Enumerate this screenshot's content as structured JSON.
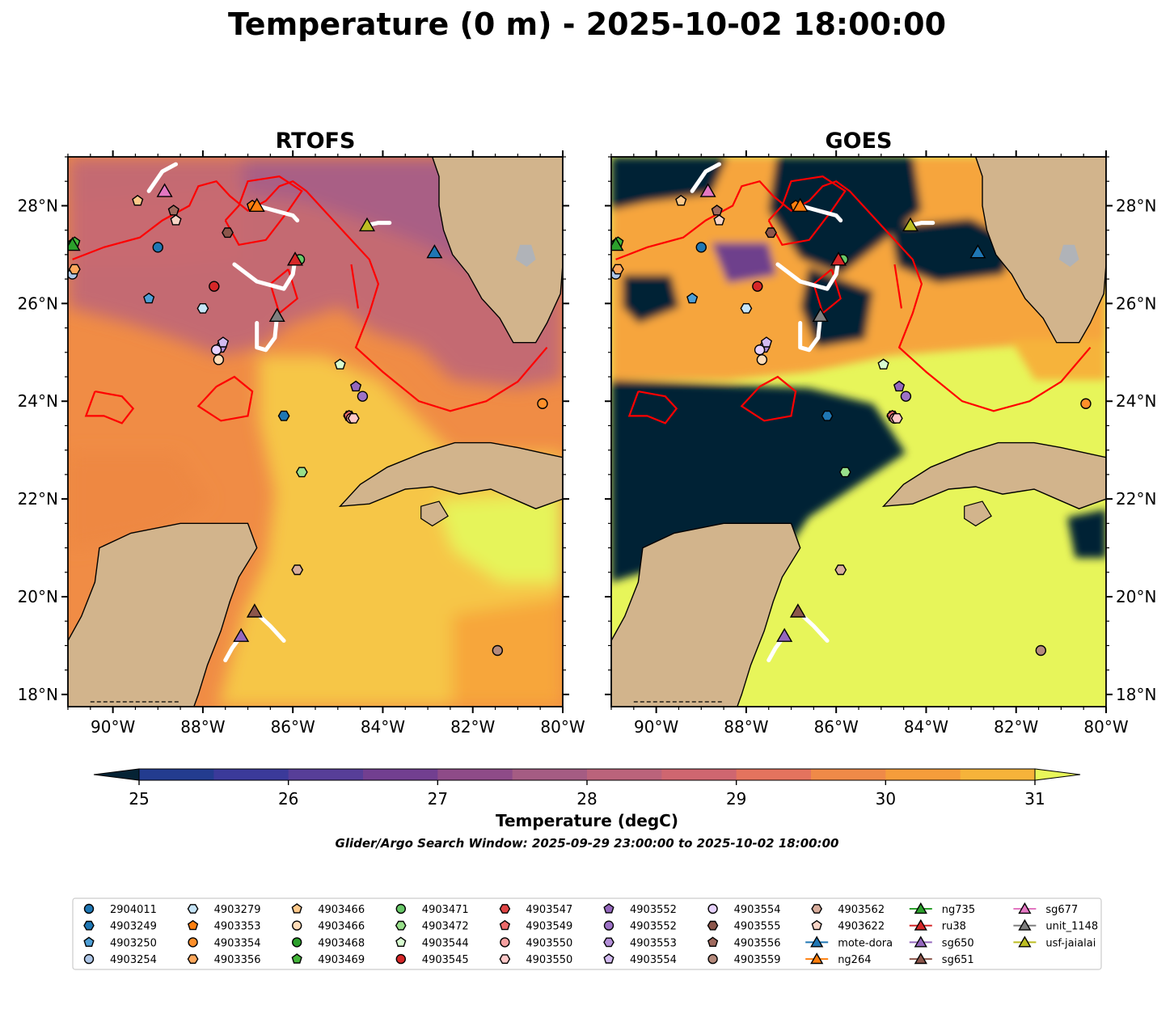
{
  "figure": {
    "title": "Temperature (0 m) - 2025-10-02 18:00:00",
    "search_window": "Glider/Argo Search Window: 2025-09-29 23:00:00 to 2025-10-02 18:00:00"
  },
  "chart_data": {
    "type": "heatmap",
    "x_range": [
      -91,
      -80
    ],
    "y_range": [
      17.75,
      29
    ],
    "x_ticks": [
      {
        "value": -90,
        "label": "90°W"
      },
      {
        "value": -88,
        "label": "88°W"
      },
      {
        "value": -86,
        "label": "86°W"
      },
      {
        "value": -84,
        "label": "84°W"
      },
      {
        "value": -82,
        "label": "82°W"
      },
      {
        "value": -80,
        "label": "80°W"
      }
    ],
    "y_ticks": [
      {
        "value": 18,
        "label": "18°N"
      },
      {
        "value": 20,
        "label": "20°N"
      },
      {
        "value": 22,
        "label": "22°N"
      },
      {
        "value": 24,
        "label": "24°N"
      },
      {
        "value": 26,
        "label": "26°N"
      },
      {
        "value": 28,
        "label": "28°N"
      }
    ],
    "panels": [
      {
        "title": "RTOFS",
        "tick_side": "left"
      },
      {
        "title": "GOES",
        "tick_side": "right"
      }
    ],
    "colorbar": {
      "label": "Temperature (degC)",
      "ticks": [
        25,
        26,
        27,
        28,
        29,
        30,
        31
      ],
      "range": [
        25,
        31
      ],
      "extend": "both",
      "colors": [
        "#052335",
        "#13306e",
        "#233c8f",
        "#3b3a9a",
        "#573e98",
        "#723f90",
        "#8e4b88",
        "#a55c83",
        "#bb637b",
        "#cf6670",
        "#e4735e",
        "#ef8a48",
        "#f59d3b",
        "#f6b33a",
        "#f5c847",
        "#e8f75a"
      ],
      "under_color": "#052335",
      "over_color": "#e8f75a"
    },
    "land_color": "#d2b48c",
    "observations": [
      {
        "name": "2904011",
        "lon": -89.0,
        "lat": 27.15,
        "marker": "circle",
        "color": "#1f77b4"
      },
      {
        "name": "4903249",
        "lon": -86.2,
        "lat": 23.7,
        "marker": "hexagon",
        "color": "#1f77b4"
      },
      {
        "name": "4903250",
        "lon": -89.2,
        "lat": 26.1,
        "marker": "pentagon",
        "color": "#4e9fd6"
      },
      {
        "name": "4903254",
        "lon": -90.9,
        "lat": 26.6,
        "marker": "circle",
        "color": "#aec7e8"
      },
      {
        "name": "4903279",
        "lon": -88.0,
        "lat": 25.9,
        "marker": "hexagon",
        "color": "#c6e5f8"
      },
      {
        "name": "4903353",
        "lon": -86.9,
        "lat": 28.0,
        "marker": "pentagon",
        "color": "#ff7f0e"
      },
      {
        "name": "4903354",
        "lon": -80.45,
        "lat": 23.95,
        "marker": "circle",
        "color": "#ff8f2a"
      },
      {
        "name": "4903356",
        "lon": -90.85,
        "lat": 26.7,
        "marker": "hexagon",
        "color": "#ffa85c"
      },
      {
        "name": "4903466",
        "lon": -89.45,
        "lat": 28.1,
        "marker": "pentagon",
        "color": "#ffc98a"
      },
      {
        "name": "4903466",
        "lon": -87.65,
        "lat": 24.85,
        "marker": "circle",
        "color": "#ffdcb8"
      },
      {
        "name": "4903468",
        "lon": -90.9,
        "lat": 27.2,
        "marker": "circle",
        "color": "#2ca02c"
      },
      {
        "name": "4903469",
        "lon": -90.85,
        "lat": 27.25,
        "marker": "pentagon",
        "color": "#44b63a"
      },
      {
        "name": "4903471",
        "lon": -85.85,
        "lat": 26.9,
        "marker": "circle",
        "color": "#68c868"
      },
      {
        "name": "4903472",
        "lon": -85.8,
        "lat": 22.55,
        "marker": "hexagon",
        "color": "#98df8a"
      },
      {
        "name": "4903544",
        "lon": -84.95,
        "lat": 24.75,
        "marker": "pentagon",
        "color": "#d8fcd0"
      },
      {
        "name": "4903545",
        "lon": -87.75,
        "lat": 26.35,
        "marker": "circle",
        "color": "#d62728"
      },
      {
        "name": "4903547",
        "lon": -84.75,
        "lat": 23.7,
        "marker": "hexagon",
        "color": "#e04545"
      },
      {
        "name": "4903549",
        "lon": -84.75,
        "lat": 23.7,
        "marker": "pentagon",
        "color": "#ec6b6b"
      },
      {
        "name": "4903550",
        "lon": -84.7,
        "lat": 23.65,
        "marker": "circle",
        "color": "#f5a0a0"
      },
      {
        "name": "4903550",
        "lon": -84.65,
        "lat": 23.65,
        "marker": "hexagon",
        "color": "#ffc8c8"
      },
      {
        "name": "4903552",
        "lon": -84.6,
        "lat": 24.3,
        "marker": "pentagon",
        "color": "#9467bd"
      },
      {
        "name": "4903552",
        "lon": -84.45,
        "lat": 24.1,
        "marker": "circle",
        "color": "#9d72c6"
      },
      {
        "name": "4903553",
        "lon": -87.6,
        "lat": 25.1,
        "marker": "hexagon",
        "color": "#b38fd8"
      },
      {
        "name": "4903554",
        "lon": -87.55,
        "lat": 25.2,
        "marker": "pentagon",
        "color": "#d2baf0"
      },
      {
        "name": "4903554",
        "lon": -87.7,
        "lat": 25.05,
        "marker": "circle",
        "color": "#e7d2ff"
      },
      {
        "name": "4903555",
        "lon": -87.45,
        "lat": 27.45,
        "marker": "hexagon",
        "color": "#8c564b"
      },
      {
        "name": "4903556",
        "lon": -88.65,
        "lat": 27.9,
        "marker": "pentagon",
        "color": "#a06a5e"
      },
      {
        "name": "4903559",
        "lon": -81.45,
        "lat": 18.9,
        "marker": "circle",
        "color": "#b58a7c"
      },
      {
        "name": "4903562",
        "lon": -85.9,
        "lat": 20.55,
        "marker": "hexagon",
        "color": "#d8ad9c"
      },
      {
        "name": "4903622",
        "lon": -88.6,
        "lat": 27.7,
        "marker": "pentagon",
        "color": "#f7d4c6"
      },
      {
        "name": "mote-dora",
        "lon": -82.85,
        "lat": 27.05,
        "marker": "triangle",
        "color": "#1f77b4",
        "line": true
      },
      {
        "name": "ng264",
        "lon": -86.8,
        "lat": 28.0,
        "marker": "triangle",
        "color": "#ff7f0e",
        "line": true
      },
      {
        "name": "ng735",
        "lon": -90.9,
        "lat": 27.2,
        "marker": "triangle",
        "color": "#2ca02c",
        "line": true
      },
      {
        "name": "ru38",
        "lon": -85.95,
        "lat": 26.9,
        "marker": "triangle",
        "color": "#d62728",
        "line": true
      },
      {
        "name": "sg650",
        "lon": -87.15,
        "lat": 19.2,
        "marker": "triangle",
        "color": "#9467bd",
        "line": true
      },
      {
        "name": "sg651",
        "lon": -86.85,
        "lat": 19.7,
        "marker": "triangle",
        "color": "#8c564b",
        "line": true
      },
      {
        "name": "sg677",
        "lon": -88.85,
        "lat": 28.3,
        "marker": "triangle",
        "color": "#e377c2",
        "line": true
      },
      {
        "name": "unit_1148",
        "lon": -86.35,
        "lat": 25.75,
        "marker": "triangle",
        "color": "#7f7f7f",
        "line": true
      },
      {
        "name": "usf-jaialai",
        "lon": -84.35,
        "lat": 27.6,
        "marker": "triangle",
        "color": "#bcbd22",
        "line": true
      }
    ]
  }
}
